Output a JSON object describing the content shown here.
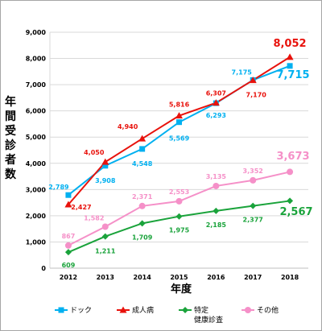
{
  "chart_data": {
    "type": "line",
    "title": "",
    "ylabel": "年間受診者数",
    "xlabel": "年度",
    "x": [
      "2012",
      "2013",
      "2014",
      "2015",
      "2016",
      "2017",
      "2018"
    ],
    "ylim": [
      0,
      9000
    ],
    "yticks": [
      "0",
      "1,000",
      "2,000",
      "3,000",
      "4,000",
      "5,000",
      "6,000",
      "7,000",
      "8,000",
      "9,000"
    ],
    "grid": "horizontal",
    "legend_position": "bottom",
    "series": [
      {
        "name": "ドック",
        "color": "#00b0f0",
        "marker": "square",
        "values": [
          2789,
          3908,
          4548,
          5569,
          6293,
          7175,
          7715
        ],
        "labels": [
          "2,789",
          "3,908",
          "4,548",
          "5,569",
          "6,293",
          "7,175",
          "7,715"
        ]
      },
      {
        "name": "成人病",
        "color": "#e8120c",
        "marker": "triangle",
        "values": [
          2427,
          4050,
          4940,
          5816,
          6307,
          7170,
          8052
        ],
        "labels": [
          "2,427",
          "4,050",
          "4,940",
          "5,816",
          "6,307",
          "7,170",
          "8,052"
        ]
      },
      {
        "name": "特定健康診査",
        "name_lines": [
          "特定",
          "健康診査"
        ],
        "color": "#1aa33b",
        "marker": "diamond",
        "values": [
          609,
          1211,
          1709,
          1975,
          2185,
          2377,
          2567
        ],
        "labels": [
          "609",
          "1,211",
          "1,709",
          "1,975",
          "2,185",
          "2,377",
          "2,567"
        ]
      },
      {
        "name": "その他",
        "color": "#f590c8",
        "marker": "circle",
        "values": [
          867,
          1582,
          2371,
          2553,
          3135,
          3352,
          3673
        ],
        "labels": [
          "867",
          "1,582",
          "2,371",
          "2,553",
          "3,135",
          "3,352",
          "3,673"
        ]
      }
    ]
  }
}
